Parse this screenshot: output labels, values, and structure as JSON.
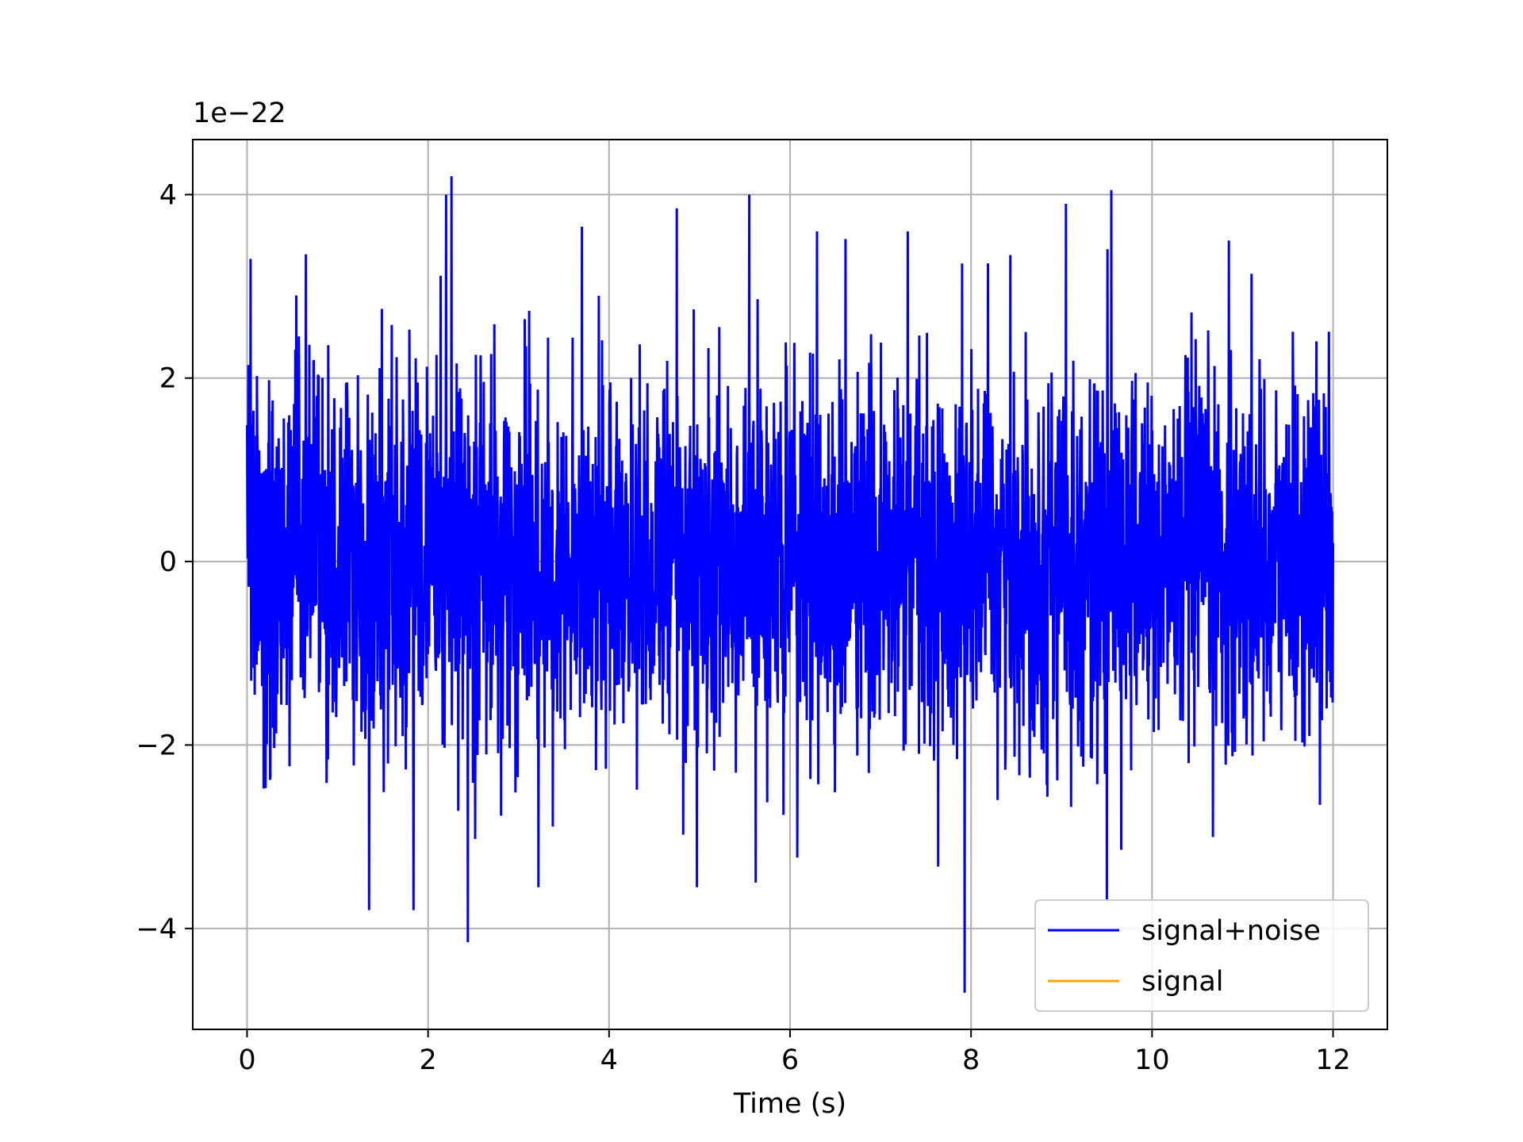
{
  "chart_data": {
    "type": "line",
    "title": "",
    "xlabel": "Time (s)",
    "ylabel": "",
    "y_offset_label": "1e−22",
    "xlim": [
      -0.6,
      12.6
    ],
    "ylim": [
      -5.1,
      4.6
    ],
    "xticks": [
      0,
      2,
      4,
      6,
      8,
      10,
      12
    ],
    "xtick_labels": [
      "0",
      "2",
      "4",
      "6",
      "8",
      "10",
      "12"
    ],
    "yticks": [
      -4,
      -2,
      0,
      2,
      4
    ],
    "ytick_labels": [
      "−4",
      "−2",
      "0",
      "2",
      "4"
    ],
    "grid": true,
    "legend_position": "lower-right",
    "series": [
      {
        "name": "signal+noise",
        "color": "#0000ff",
        "x_range": [
          0,
          12
        ],
        "description_values": {
          "typical_amplitude": 1.0,
          "max": 4.2,
          "min": -4.7
        },
        "peaks": [
          {
            "x": 0.04,
            "y": 3.3
          },
          {
            "x": 0.65,
            "y": 3.35
          },
          {
            "x": 1.35,
            "y": -3.8
          },
          {
            "x": 1.84,
            "y": -3.8
          },
          {
            "x": 2.2,
            "y": 4.0
          },
          {
            "x": 2.26,
            "y": 4.2
          },
          {
            "x": 2.44,
            "y": -4.15
          },
          {
            "x": 3.22,
            "y": -3.55
          },
          {
            "x": 3.7,
            "y": 3.65
          },
          {
            "x": 4.75,
            "y": 3.85
          },
          {
            "x": 4.97,
            "y": -3.55
          },
          {
            "x": 5.55,
            "y": 4.0
          },
          {
            "x": 5.62,
            "y": -3.5
          },
          {
            "x": 6.3,
            "y": 3.6
          },
          {
            "x": 7.3,
            "y": 3.6
          },
          {
            "x": 7.9,
            "y": 3.25
          },
          {
            "x": 7.93,
            "y": -4.7
          },
          {
            "x": 9.05,
            "y": 3.9
          },
          {
            "x": 9.55,
            "y": 4.05
          },
          {
            "x": 9.5,
            "y": -3.7
          },
          {
            "x": 10.85,
            "y": 3.5
          }
        ]
      },
      {
        "name": "signal",
        "color": "#ffa500",
        "values": []
      }
    ]
  }
}
